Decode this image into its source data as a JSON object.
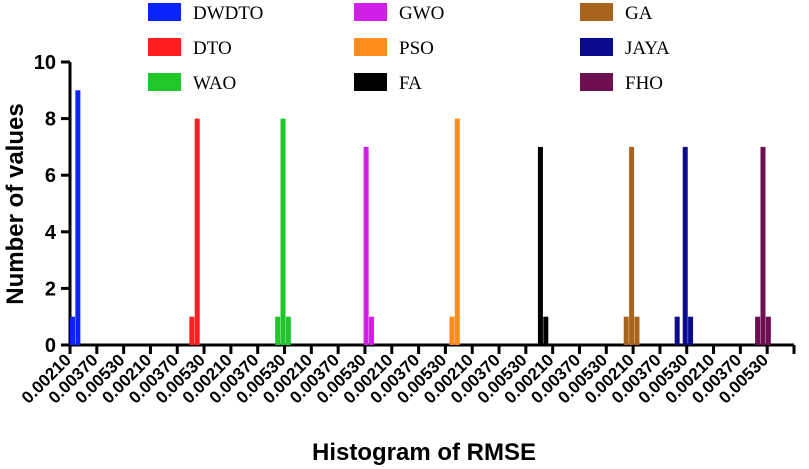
{
  "chart_data": {
    "type": "bar",
    "title": "",
    "xlabel": "Histogram of RMSE",
    "ylabel": "Number of values",
    "ylim": [
      0,
      10
    ],
    "yticks": [
      0,
      2,
      4,
      6,
      8,
      10
    ],
    "categories": [
      "0.00210",
      "0.00370",
      "0.00530",
      "0.00210",
      "0.00370",
      "0.00530",
      "0.00210",
      "0.00370",
      "0.00530",
      "0.00210",
      "0.00370",
      "0.00530",
      "0.00210",
      "0.00370",
      "0.00530",
      "0.00210",
      "0.00370",
      "0.00530",
      "0.00210",
      "0.00370",
      "0.00530",
      "0.00210",
      "0.00370",
      "0.00530",
      "0.00210",
      "0.00370",
      "0.00530"
    ],
    "legend": [
      {
        "name": "DWDTO",
        "color": "#0b24fb"
      },
      {
        "name": "DTO",
        "color": "#ff1f1f"
      },
      {
        "name": "WAO",
        "color": "#1fc72a"
      },
      {
        "name": "GWO",
        "color": "#d21fe8"
      },
      {
        "name": "PSO",
        "color": "#ff8c1a"
      },
      {
        "name": "FA",
        "color": "#000000"
      },
      {
        "name": "GA",
        "color": "#a8631c"
      },
      {
        "name": "JAYA",
        "color": "#0a0a8c"
      },
      {
        "name": "FHO",
        "color": "#6e0f4f"
      }
    ],
    "series": [
      {
        "name": "DWDTO",
        "color": "#0b24fb",
        "bars": [
          {
            "slot": 0,
            "value": 1
          },
          {
            "slot": 0.2,
            "value": 9
          }
        ]
      },
      {
        "name": "DTO",
        "color": "#ff1f1f",
        "bars": [
          {
            "slot": 4.45,
            "value": 1
          },
          {
            "slot": 4.65,
            "value": 8
          }
        ]
      },
      {
        "name": "WAO",
        "color": "#1fc72a",
        "bars": [
          {
            "slot": 7.65,
            "value": 1
          },
          {
            "slot": 7.85,
            "value": 8
          },
          {
            "slot": 8.05,
            "value": 1
          }
        ]
      },
      {
        "name": "GWO",
        "color": "#d21fe8",
        "bars": [
          {
            "slot": 10.95,
            "value": 7
          },
          {
            "slot": 11.15,
            "value": 1
          }
        ]
      },
      {
        "name": "PSO",
        "color": "#ff8c1a",
        "bars": [
          {
            "slot": 14.15,
            "value": 1
          },
          {
            "slot": 14.35,
            "value": 8
          }
        ]
      },
      {
        "name": "FA",
        "color": "#000000",
        "bars": [
          {
            "slot": 17.45,
            "value": 7
          },
          {
            "slot": 17.65,
            "value": 1
          }
        ]
      },
      {
        "name": "GA",
        "color": "#a8631c",
        "bars": [
          {
            "slot": 20.65,
            "value": 1
          },
          {
            "slot": 20.85,
            "value": 7
          },
          {
            "slot": 21.05,
            "value": 1
          }
        ]
      },
      {
        "name": "JAYA",
        "color": "#0a0a8c",
        "bars": [
          {
            "slot": 22.55,
            "value": 1
          },
          {
            "slot": 22.85,
            "value": 7
          },
          {
            "slot": 23.05,
            "value": 1
          }
        ]
      },
      {
        "name": "FHO",
        "color": "#6e0f4f",
        "bars": [
          {
            "slot": 25.55,
            "value": 1
          },
          {
            "slot": 25.75,
            "value": 7
          },
          {
            "slot": 25.95,
            "value": 1
          }
        ]
      }
    ]
  }
}
